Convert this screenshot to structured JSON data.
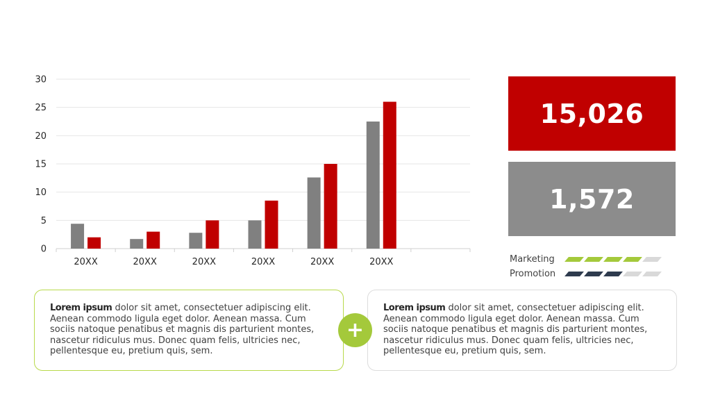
{
  "chart_data": {
    "type": "bar",
    "categories": [
      "20XX",
      "20XX",
      "20XX",
      "20XX",
      "20XX",
      "20XX"
    ],
    "series": [
      {
        "values": [
          4.4,
          1.7,
          2.8,
          5.0,
          12.6,
          22.5
        ],
        "color": "#808080"
      },
      {
        "values": [
          2.0,
          3.0,
          5.0,
          8.5,
          15.0,
          26.0
        ],
        "color": "#c00000"
      }
    ],
    "ylim": [
      0,
      30
    ],
    "yticks": [
      0,
      5,
      10,
      15,
      20,
      25,
      30
    ],
    "grid": true,
    "category_slots": 7
  },
  "stats": {
    "primary": {
      "value": "15,026",
      "color": "#c00000"
    },
    "secondary": {
      "value": "1,572",
      "color": "#8c8c8c"
    }
  },
  "meters": [
    {
      "label": "Marketing",
      "filled": 4,
      "total": 5,
      "color": "#a4c93b",
      "empty_color": "#d9d9d9"
    },
    {
      "label": "Promotion",
      "filled": 3,
      "total": 5,
      "color": "#2e3b4e",
      "empty_color": "#d9d9d9"
    }
  ],
  "cards": {
    "left": {
      "bold": "Lorem ipsum",
      "text": " dolor sit amet, consectetuer adipiscing elit. Aenean commodo ligula eget dolor. Aenean massa. Cum sociis natoque penatibus et magnis dis parturient montes, nascetur ridiculus mus. Donec quam felis, ultricies nec, pellentesque eu, pretium quis, sem."
    },
    "right": {
      "bold": "Lorem ipsum",
      "text": " dolor sit amet, consectetuer adipiscing elit. Aenean commodo ligula eget dolor. Aenean massa. Cum sociis natoque penatibus et magnis dis parturient montes, nascetur ridiculus mus. Donec quam felis, ultricies nec, pellentesque eu, pretium quis, sem."
    }
  },
  "connector": {
    "glyph": "+",
    "icon": "plus-icon",
    "color": "#a4c93b"
  }
}
